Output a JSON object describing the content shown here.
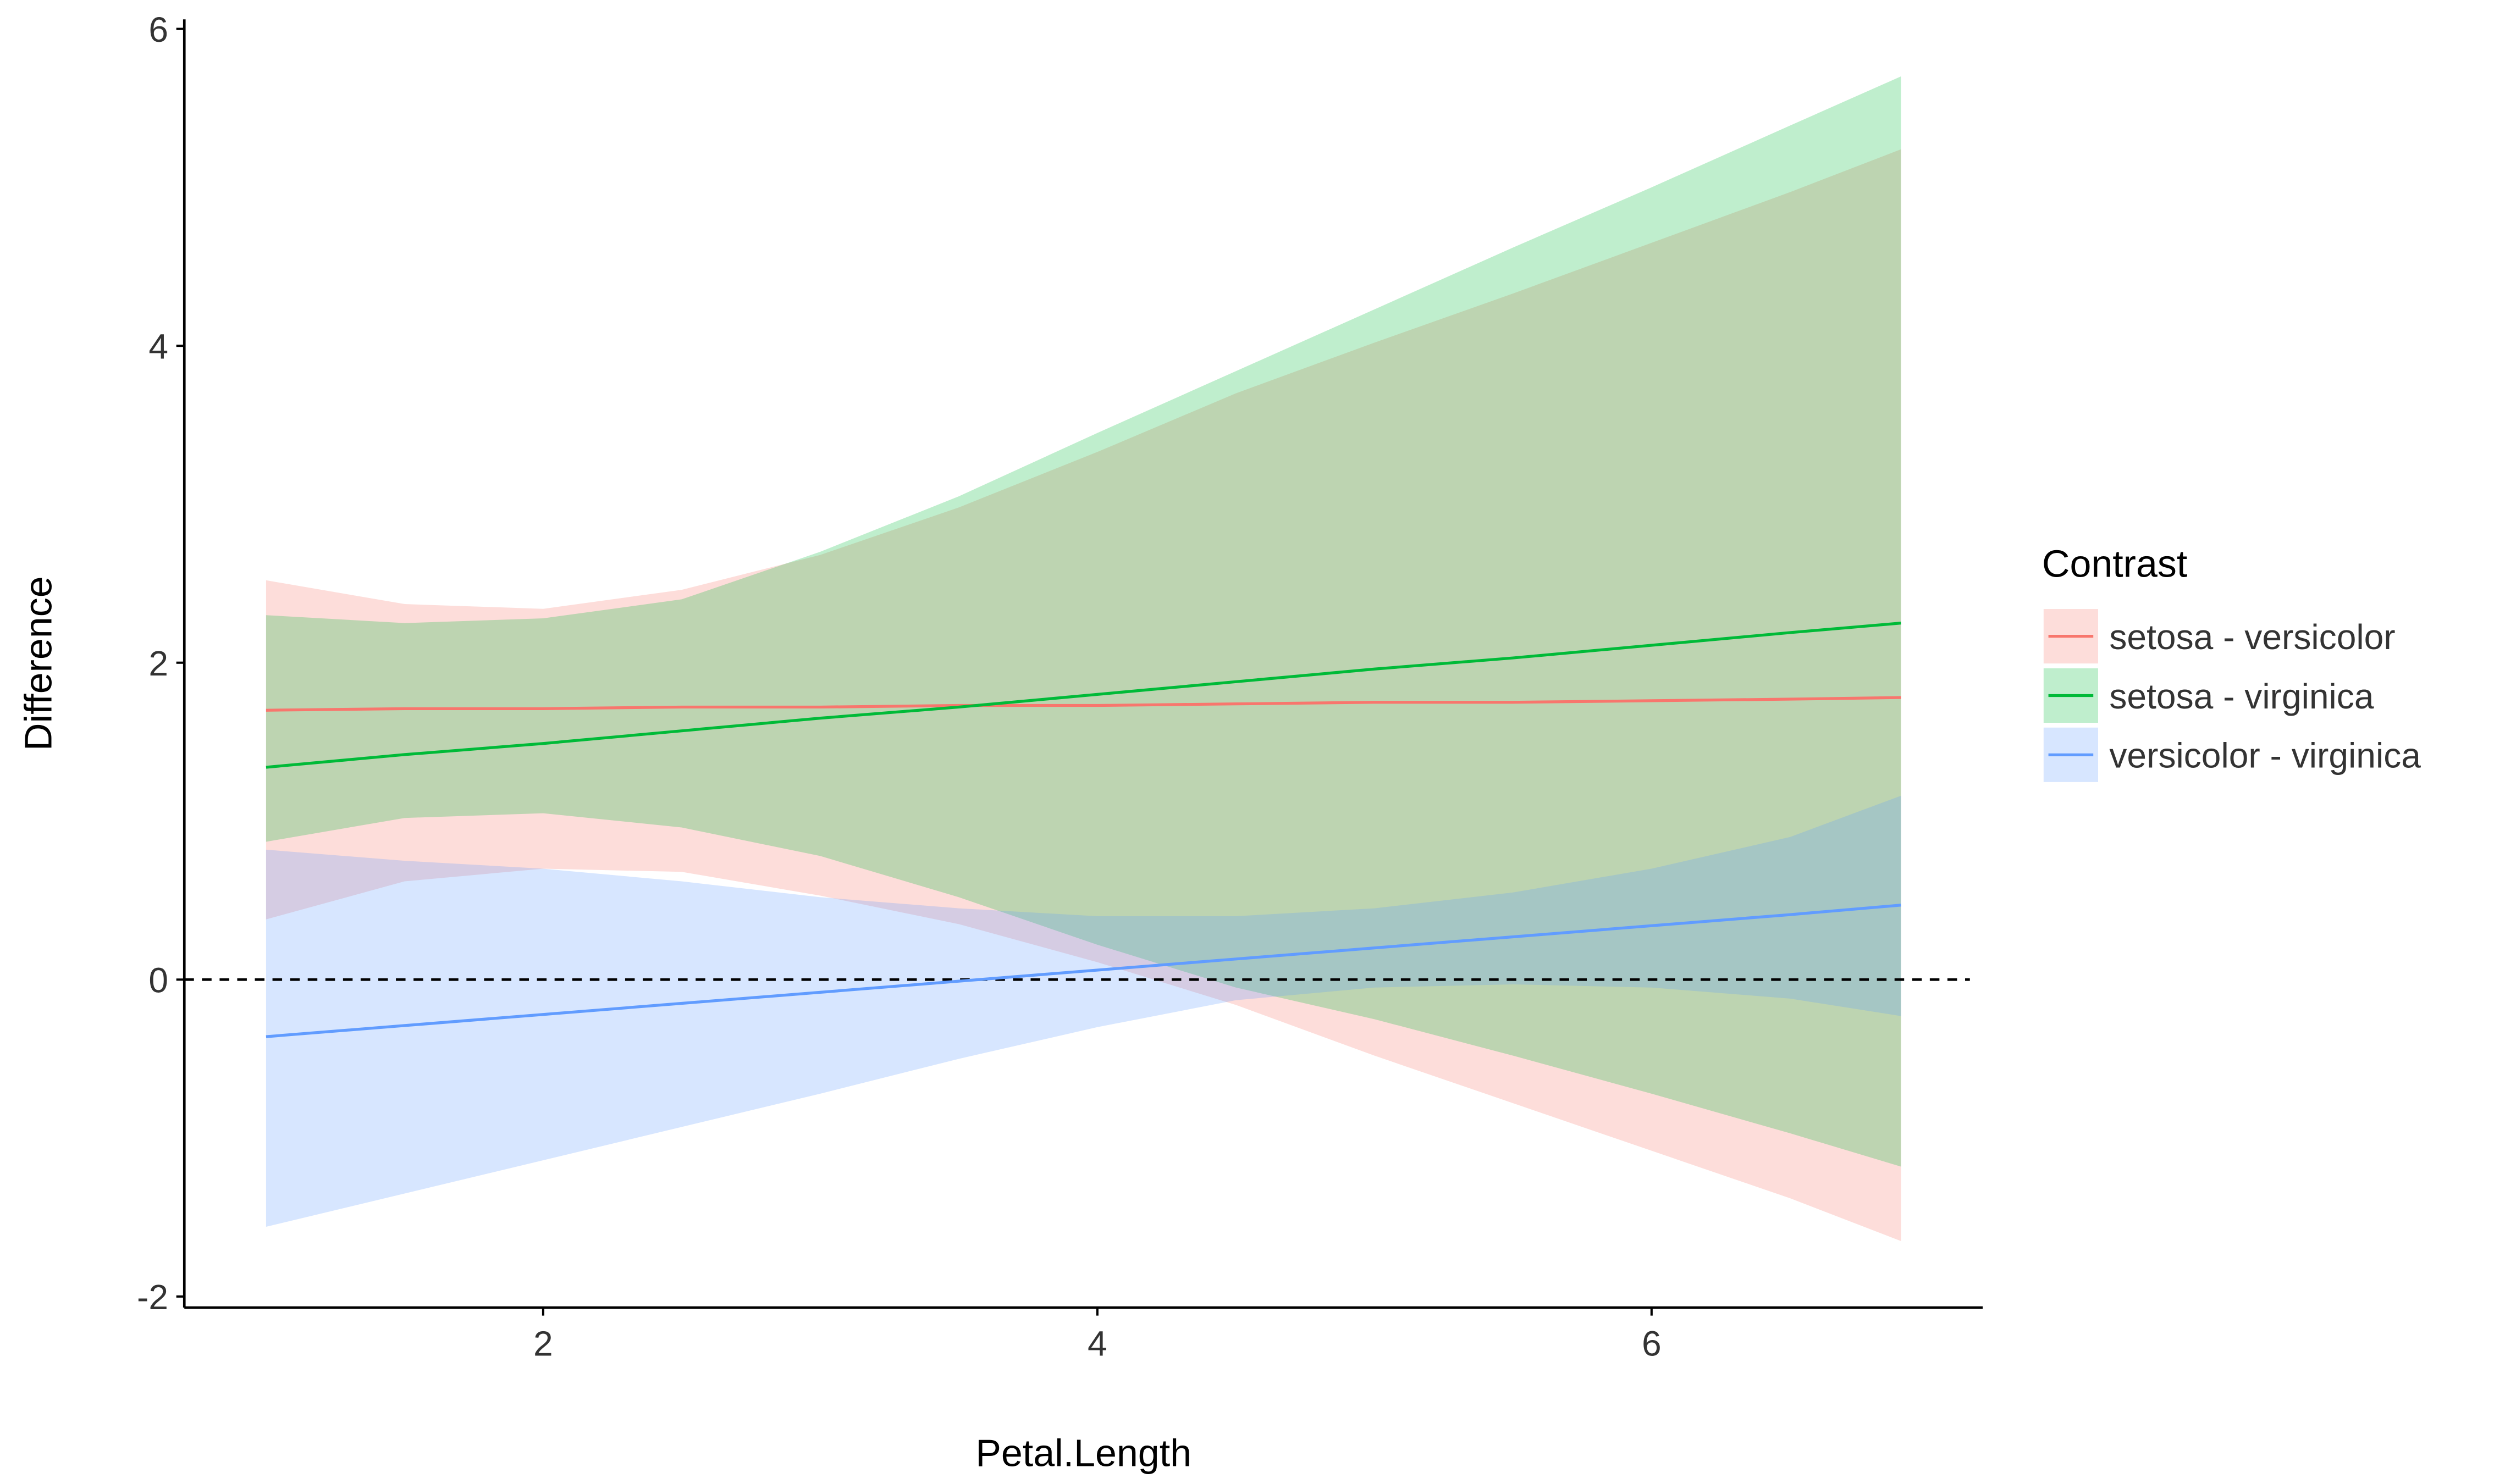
{
  "chart_data": {
    "type": "line",
    "x_label": "Petal.Length",
    "y_label": "Difference",
    "legend_title": "Contrast",
    "legend": "right",
    "grid": false,
    "x": [
      1,
      1.5,
      2,
      2.5,
      3,
      3.5,
      4,
      4.5,
      5,
      5.5,
      6,
      6.5,
      6.9
    ],
    "xlim": [
      0.705,
      7.195
    ],
    "xticks": [
      2,
      4,
      6
    ],
    "ylim": [
      -2.07,
      6.06
    ],
    "yticks": [
      -2,
      0,
      2,
      4,
      6
    ],
    "reference_line": 0,
    "series": [
      {
        "name": "setosa - versicolor",
        "color": "#F8766D",
        "values": [
          1.7,
          1.71,
          1.71,
          1.72,
          1.72,
          1.73,
          1.73,
          1.74,
          1.75,
          1.75,
          1.76,
          1.77,
          1.78
        ],
        "upper": [
          2.52,
          2.37,
          2.34,
          2.46,
          2.68,
          2.98,
          3.33,
          3.7,
          4.02,
          4.33,
          4.65,
          4.97,
          5.24
        ],
        "lower": [
          0.38,
          0.62,
          0.7,
          0.68,
          0.53,
          0.35,
          0.11,
          -0.16,
          -0.48,
          -0.78,
          -1.08,
          -1.38,
          -1.65
        ]
      },
      {
        "name": "setosa - virginica",
        "color": "#00BA38",
        "values": [
          1.34,
          1.42,
          1.49,
          1.57,
          1.65,
          1.72,
          1.8,
          1.88,
          1.96,
          2.03,
          2.11,
          2.19,
          2.25
        ],
        "upper": [
          2.3,
          2.25,
          2.28,
          2.4,
          2.7,
          3.05,
          3.45,
          3.84,
          4.23,
          4.62,
          5.0,
          5.39,
          5.7
        ],
        "lower": [
          0.87,
          1.02,
          1.05,
          0.96,
          0.78,
          0.52,
          0.22,
          -0.05,
          -0.25,
          -0.48,
          -0.72,
          -0.97,
          -1.18
        ]
      },
      {
        "name": "versicolor - virginica",
        "color": "#619CFF",
        "values": [
          -0.36,
          -0.29,
          -0.22,
          -0.15,
          -0.08,
          -0.01,
          0.06,
          0.13,
          0.2,
          0.27,
          0.34,
          0.41,
          0.47
        ],
        "upper": [
          0.82,
          0.75,
          0.7,
          0.62,
          0.52,
          0.45,
          0.4,
          0.4,
          0.45,
          0.55,
          0.7,
          0.9,
          1.16
        ],
        "lower": [
          -1.56,
          -1.35,
          -1.14,
          -0.93,
          -0.72,
          -0.5,
          -0.3,
          -0.13,
          -0.05,
          -0.03,
          -0.05,
          -0.12,
          -0.23
        ]
      }
    ]
  }
}
